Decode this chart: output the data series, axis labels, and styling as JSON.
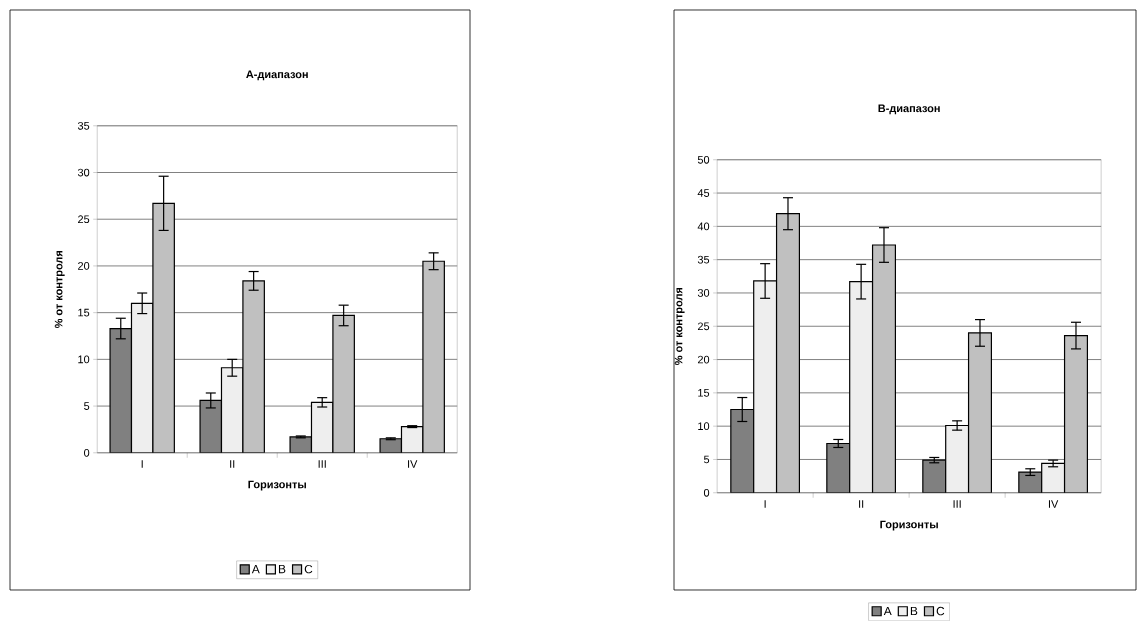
{
  "chart_data": [
    {
      "type": "bar",
      "title": "А-диапазон",
      "xlabel": "Горизонты",
      "ylabel": "% от контроля",
      "categories": [
        "I",
        "II",
        "III",
        "IV"
      ],
      "series": [
        {
          "name": "A",
          "color": "#808080",
          "values": [
            13.3,
            5.6,
            1.7,
            1.5
          ],
          "errors": [
            1.1,
            0.8,
            0.1,
            0.1
          ]
        },
        {
          "name": "B",
          "color": "#eeeeee",
          "values": [
            16.0,
            9.1,
            5.4,
            2.8
          ],
          "errors": [
            1.1,
            0.9,
            0.5,
            0.1
          ]
        },
        {
          "name": "C",
          "color": "#c0c0c0",
          "values": [
            26.7,
            18.4,
            14.7,
            20.5
          ],
          "errors": [
            2.9,
            1.0,
            1.1,
            0.9
          ]
        }
      ],
      "ylim": [
        0,
        35
      ],
      "yticks": [
        0,
        5,
        10,
        15,
        20,
        25,
        30,
        35
      ],
      "grid": "y",
      "legend": "bottom"
    },
    {
      "type": "bar",
      "title": "В-диапазон",
      "xlabel": "Горизонты",
      "ylabel": "% от контроля",
      "categories": [
        "I",
        "II",
        "III",
        "IV"
      ],
      "series": [
        {
          "name": "A",
          "color": "#808080",
          "values": [
            12.5,
            7.4,
            4.9,
            3.1
          ],
          "errors": [
            1.8,
            0.6,
            0.4,
            0.5
          ]
        },
        {
          "name": "B",
          "color": "#eeeeee",
          "values": [
            31.8,
            31.7,
            10.1,
            4.4
          ],
          "errors": [
            2.6,
            2.6,
            0.7,
            0.5
          ]
        },
        {
          "name": "C",
          "color": "#c0c0c0",
          "values": [
            41.9,
            37.2,
            24.0,
            23.6
          ],
          "errors": [
            2.4,
            2.6,
            2.0,
            2.0
          ]
        }
      ],
      "ylim": [
        0,
        50
      ],
      "yticks": [
        0,
        5,
        10,
        15,
        20,
        25,
        30,
        35,
        40,
        45,
        50
      ],
      "grid": "y",
      "legend": "bottom"
    }
  ]
}
